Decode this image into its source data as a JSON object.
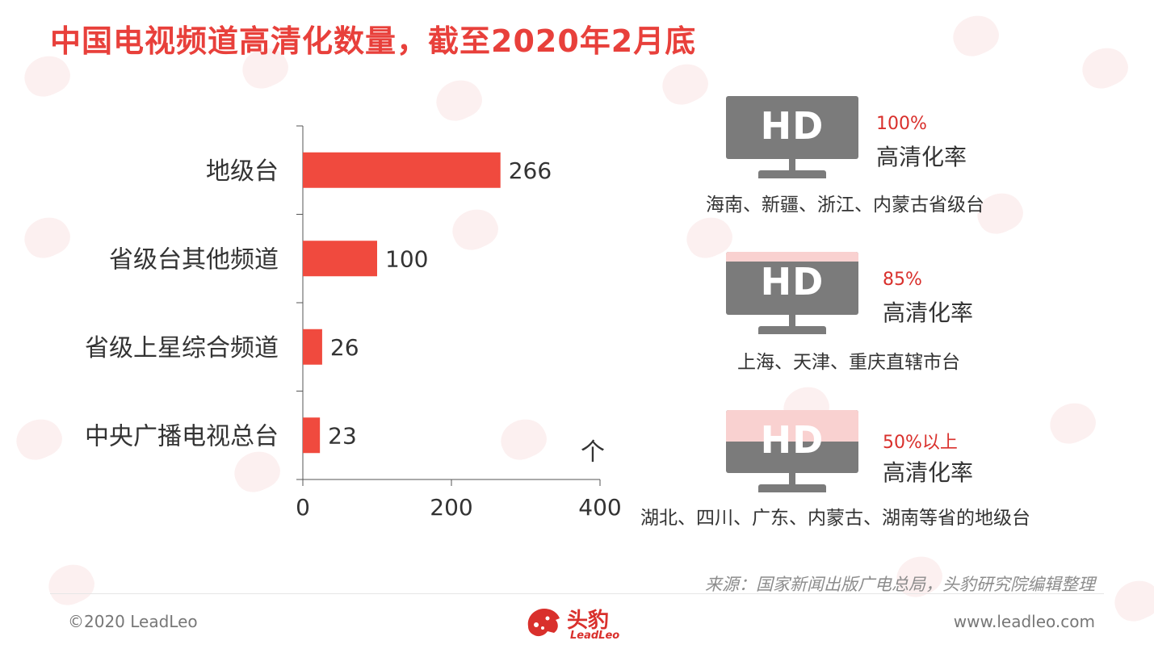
{
  "title": "中国电视频道高清化数量，截至2020年2月底",
  "chart_data": {
    "type": "bar",
    "orientation": "horizontal",
    "categories": [
      "地级台",
      "省级台其他频道",
      "省级上星综合频道",
      "中央广播电视总台"
    ],
    "values": [
      266,
      100,
      26,
      23
    ],
    "unit_label": "个",
    "xlim": [
      0,
      400
    ],
    "xticks": [
      0,
      200,
      400
    ],
    "bar_color": "#f04a3e",
    "grid": false
  },
  "hd_panels": [
    {
      "badge": "HD",
      "rate_value": "100%",
      "rate_label": "高清化率",
      "fill_fraction": 1.0,
      "regions": "海南、新疆、浙江、内蒙古省级台"
    },
    {
      "badge": "HD",
      "rate_value": "85%",
      "rate_label": "高清化率",
      "fill_fraction": 0.85,
      "regions": "上海、天津、重庆直辖市台"
    },
    {
      "badge": "HD",
      "rate_value": "50%以上",
      "rate_label": "高清化率",
      "fill_fraction": 0.5,
      "regions": "湖北、四川、广东、内蒙古、湖南等省的地级台"
    }
  ],
  "colors": {
    "accent": "#e8403b",
    "bar": "#f04a3e",
    "monitor": "#7b7b7b",
    "screen_unfilled": "#f9d1d0",
    "rate_value": "#d9302c"
  },
  "source": "来源：国家新闻出版广电总局，头豹研究院编辑整理",
  "footer": {
    "copyright": "©2020 LeadLeo",
    "website": "www.leadleo.com",
    "logo_cn": "头豹",
    "logo_en": "LeadLeo"
  }
}
